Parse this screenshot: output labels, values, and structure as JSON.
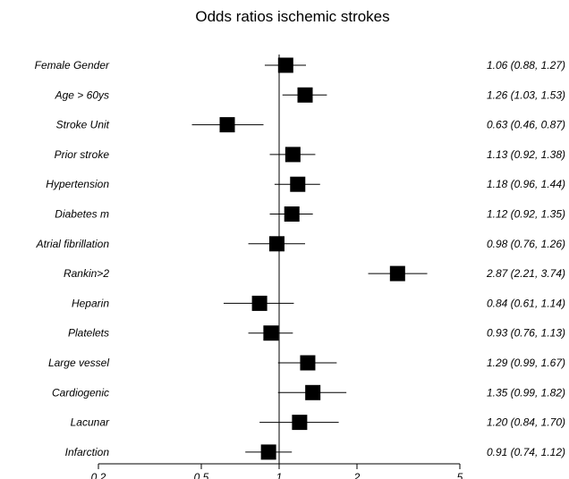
{
  "chart_data": {
    "type": "forest",
    "title": "Odds ratios ischemic strokes",
    "x_scale": "log",
    "xlim": [
      0.2,
      5
    ],
    "x_ticks": [
      0.2,
      0.5,
      1,
      2,
      5
    ],
    "x_tick_labels": [
      "0.2",
      "0.5",
      "1",
      "2",
      "5"
    ],
    "reference_line": 1,
    "grid": false,
    "rows": [
      {
        "label": "Female Gender",
        "or": 1.06,
        "lo": 0.88,
        "hi": 1.27,
        "text": "1.06 (0.88, 1.27)"
      },
      {
        "label": "Age > 60ys",
        "or": 1.26,
        "lo": 1.03,
        "hi": 1.53,
        "text": "1.26 (1.03, 1.53)"
      },
      {
        "label": "Stroke Unit",
        "or": 0.63,
        "lo": 0.46,
        "hi": 0.87,
        "text": "0.63 (0.46, 0.87)"
      },
      {
        "label": "Prior stroke",
        "or": 1.13,
        "lo": 0.92,
        "hi": 1.38,
        "text": "1.13 (0.92, 1.38)"
      },
      {
        "label": "Hypertension",
        "or": 1.18,
        "lo": 0.96,
        "hi": 1.44,
        "text": "1.18 (0.96, 1.44)"
      },
      {
        "label": "Diabetes m",
        "or": 1.12,
        "lo": 0.92,
        "hi": 1.35,
        "text": "1.12 (0.92, 1.35)"
      },
      {
        "label": "Atrial fibrillation",
        "or": 0.98,
        "lo": 0.76,
        "hi": 1.26,
        "text": "0.98 (0.76, 1.26)"
      },
      {
        "label": "Rankin>2",
        "or": 2.87,
        "lo": 2.21,
        "hi": 3.74,
        "text": "2.87 (2.21, 3.74)"
      },
      {
        "label": "Heparin",
        "or": 0.84,
        "lo": 0.61,
        "hi": 1.14,
        "text": "0.84 (0.61, 1.14)"
      },
      {
        "label": "Platelets",
        "or": 0.93,
        "lo": 0.76,
        "hi": 1.13,
        "text": "0.93 (0.76, 1.13)"
      },
      {
        "label": "Large vessel",
        "or": 1.29,
        "lo": 0.99,
        "hi": 1.67,
        "text": "1.29 (0.99, 1.67)"
      },
      {
        "label": "Cardiogenic",
        "or": 1.35,
        "lo": 0.99,
        "hi": 1.82,
        "text": "1.35 (0.99, 1.82)"
      },
      {
        "label": "Lacunar",
        "or": 1.2,
        "lo": 0.84,
        "hi": 1.7,
        "text": "1.20 (0.84, 1.70)"
      },
      {
        "label": "Infarction",
        "or": 0.91,
        "lo": 0.74,
        "hi": 1.12,
        "text": "0.91 (0.74, 1.12)"
      }
    ]
  }
}
